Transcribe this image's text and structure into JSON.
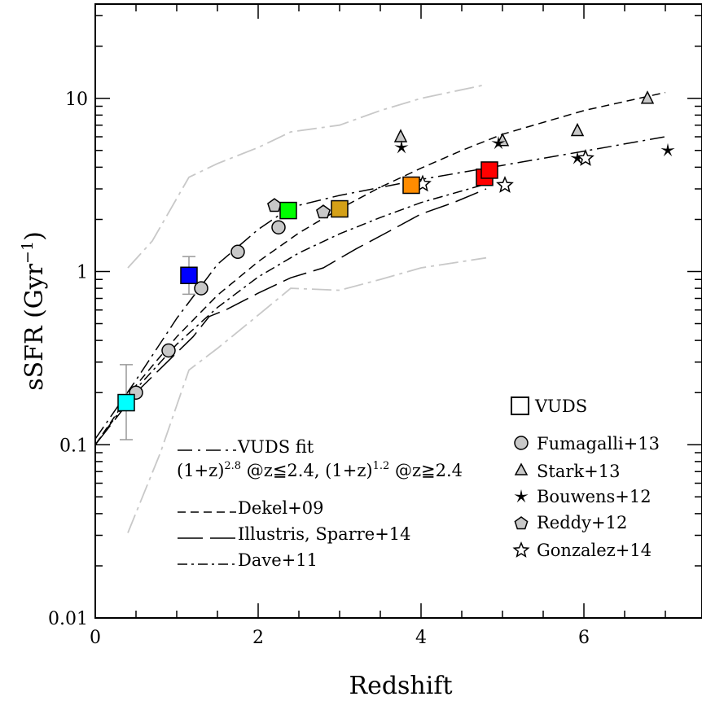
{
  "chart_data": {
    "type": "scatter",
    "title": "",
    "xlabel": "Redshift",
    "ylabel": "sSFR (Gyr",
    "ylabel_exp": "−1",
    "ylabel_end": ")",
    "xlim": [
      0,
      7.45
    ],
    "ylim": [
      0.01,
      35
    ],
    "yscale": "log",
    "grid": false,
    "x_ticks": [
      0,
      2,
      4,
      6
    ],
    "x_tick_labels": [
      "0",
      "2",
      "4",
      "6"
    ],
    "y_ticks": [
      0.01,
      0.1,
      1,
      10
    ],
    "y_tick_labels": [
      "0.01",
      "0.1",
      "1",
      "10"
    ],
    "vuds_points": [
      {
        "x": 0.38,
        "y": 0.175,
        "color": "#00ffff",
        "err_low": 0.107,
        "err_high": 0.29
      },
      {
        "x": 1.15,
        "y": 0.95,
        "color": "#0000ff",
        "err_low": 0.74,
        "err_high": 1.22
      },
      {
        "x": 2.37,
        "y": 2.25,
        "color": "#00ff00"
      },
      {
        "x": 3.0,
        "y": 2.3,
        "color": "#d4a017"
      },
      {
        "x": 3.88,
        "y": 3.15,
        "color": "#ff8c00"
      },
      {
        "x": 4.78,
        "y": 3.5,
        "color": "#ff0000"
      },
      {
        "x": 4.84,
        "y": 3.85,
        "color": "#ff0000"
      }
    ],
    "fumagalli": [
      [
        0.5,
        0.2
      ],
      [
        0.9,
        0.35
      ],
      [
        1.3,
        0.8
      ],
      [
        1.75,
        1.3
      ],
      [
        2.25,
        1.8
      ]
    ],
    "stark": [
      [
        3.75,
        6.0
      ],
      [
        5.0,
        5.7
      ],
      [
        5.92,
        6.5
      ],
      [
        6.78,
        10.0
      ]
    ],
    "bouwens": [
      [
        3.76,
        5.2
      ],
      [
        4.95,
        5.5
      ],
      [
        5.92,
        4.5
      ],
      [
        7.03,
        5.0
      ]
    ],
    "reddy": [
      [
        2.2,
        2.4
      ],
      [
        2.8,
        2.2
      ]
    ],
    "gonzalez": [
      [
        4.02,
        3.2
      ],
      [
        5.03,
        3.15
      ],
      [
        6.02,
        4.5
      ]
    ],
    "fit_lines": {
      "vuds_fit": [
        [
          0,
          0.108
        ],
        [
          0.5,
          0.236
        ],
        [
          1.0,
          0.536
        ],
        [
          1.5,
          1.1
        ],
        [
          2.0,
          1.75
        ],
        [
          2.4,
          2.35
        ],
        [
          3.0,
          2.75
        ],
        [
          4.0,
          3.4
        ],
        [
          5.0,
          4.1
        ],
        [
          6.0,
          4.95
        ],
        [
          7.0,
          6.0
        ]
      ],
      "dekel": [
        [
          0,
          0.1
        ],
        [
          0.5,
          0.22
        ],
        [
          1.0,
          0.42
        ],
        [
          1.5,
          0.73
        ],
        [
          2.0,
          1.14
        ],
        [
          2.5,
          1.67
        ],
        [
          3.0,
          2.3
        ],
        [
          3.5,
          3.07
        ],
        [
          4.0,
          3.95
        ],
        [
          4.5,
          5.0
        ],
        [
          5.0,
          6.2
        ],
        [
          6.0,
          8.5
        ],
        [
          7.0,
          10.8
        ]
      ],
      "illustris": [
        [
          0,
          0.1
        ],
        [
          0.5,
          0.2
        ],
        [
          1.0,
          0.34
        ],
        [
          1.2,
          0.42
        ],
        [
          1.4,
          0.55
        ],
        [
          1.6,
          0.6
        ],
        [
          2.0,
          0.75
        ],
        [
          2.4,
          0.92
        ],
        [
          2.8,
          1.05
        ],
        [
          3.2,
          1.35
        ],
        [
          3.6,
          1.7
        ],
        [
          4.0,
          2.15
        ],
        [
          4.4,
          2.5
        ],
        [
          4.8,
          3.0
        ]
      ],
      "dave": [
        [
          0,
          0.1
        ],
        [
          0.5,
          0.21
        ],
        [
          1.0,
          0.38
        ],
        [
          1.5,
          0.62
        ],
        [
          2.0,
          0.93
        ],
        [
          2.5,
          1.28
        ],
        [
          3.0,
          1.65
        ],
        [
          3.5,
          2.05
        ],
        [
          4.0,
          2.5
        ],
        [
          4.8,
          3.2
        ]
      ],
      "grey_upper": [
        [
          0.4,
          1.05
        ],
        [
          0.7,
          1.5
        ],
        [
          1.15,
          3.5
        ],
        [
          1.5,
          4.2
        ],
        [
          2.0,
          5.2
        ],
        [
          2.4,
          6.4
        ],
        [
          3.0,
          7.0
        ],
        [
          3.5,
          8.5
        ],
        [
          4.0,
          10.0
        ],
        [
          4.8,
          12.0
        ]
      ],
      "grey_lower": [
        [
          0.4,
          0.031
        ],
        [
          0.8,
          0.09
        ],
        [
          1.15,
          0.27
        ],
        [
          1.5,
          0.36
        ],
        [
          2.0,
          0.56
        ],
        [
          2.4,
          0.8
        ],
        [
          3.0,
          0.78
        ],
        [
          3.5,
          0.9
        ],
        [
          4.0,
          1.05
        ],
        [
          4.8,
          1.2
        ]
      ]
    },
    "legend_right": {
      "vuds": "VUDS",
      "fumagalli": "Fumagalli+13",
      "stark": "Stark+13",
      "bouwens": "Bouwens+12",
      "reddy": "Reddy+12",
      "gonzalez": "Gonzalez+14"
    },
    "legend_left": {
      "vuds_fit": "VUDS fit",
      "formula_a": "(1+z)",
      "formula_a_exp": "2.8",
      "formula_b": " @z≦2.4, (1+z)",
      "formula_b_exp": "1.2",
      "formula_c": " @z≧2.4",
      "dekel": "Dekel+09",
      "illustris": "Illustris, Sparre+14",
      "dave": "Dave+11"
    }
  }
}
